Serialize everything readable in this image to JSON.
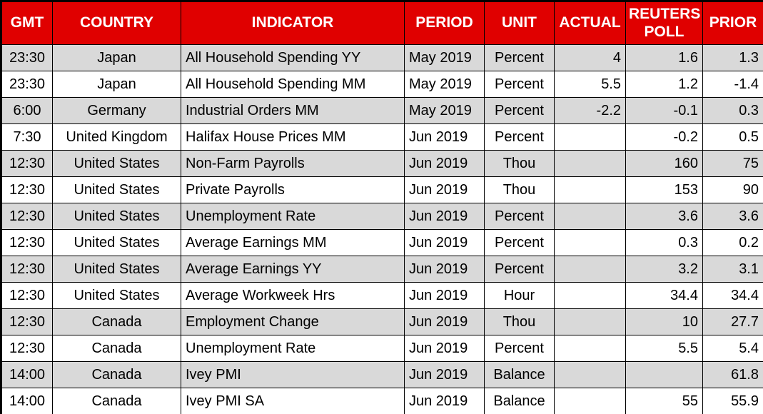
{
  "chart_data": {
    "type": "table",
    "columns": [
      {
        "key": "gmt",
        "label": "GMT",
        "align": "center"
      },
      {
        "key": "country",
        "label": "COUNTRY",
        "align": "center"
      },
      {
        "key": "indicator",
        "label": "INDICATOR",
        "align": "left"
      },
      {
        "key": "period",
        "label": "PERIOD",
        "align": "left"
      },
      {
        "key": "unit",
        "label": "UNIT",
        "align": "center"
      },
      {
        "key": "actual",
        "label": "ACTUAL",
        "align": "right"
      },
      {
        "key": "reuters_poll",
        "label": "REUTERS POLL",
        "align": "right"
      },
      {
        "key": "prior",
        "label": "PRIOR",
        "align": "right"
      }
    ],
    "rows": [
      [
        "23:30",
        "Japan",
        "All Household Spending YY",
        "May 2019",
        "Percent",
        "4",
        "1.6",
        "1.3"
      ],
      [
        "23:30",
        "Japan",
        "All Household Spending MM",
        "May 2019",
        "Percent",
        "5.5",
        "1.2",
        "-1.4"
      ],
      [
        "6:00",
        "Germany",
        "Industrial Orders MM",
        "May 2019",
        "Percent",
        "-2.2",
        "-0.1",
        "0.3"
      ],
      [
        "7:30",
        "United Kingdom",
        "Halifax House Prices MM",
        "Jun 2019",
        "Percent",
        "",
        "-0.2",
        "0.5"
      ],
      [
        "12:30",
        "United States",
        "Non-Farm Payrolls",
        "Jun 2019",
        "Thou",
        "",
        "160",
        "75"
      ],
      [
        "12:30",
        "United States",
        "Private Payrolls",
        "Jun 2019",
        "Thou",
        "",
        "153",
        "90"
      ],
      [
        "12:30",
        "United States",
        "Unemployment Rate",
        "Jun 2019",
        "Percent",
        "",
        "3.6",
        "3.6"
      ],
      [
        "12:30",
        "United States",
        "Average Earnings MM",
        "Jun 2019",
        "Percent",
        "",
        "0.3",
        "0.2"
      ],
      [
        "12:30",
        "United States",
        "Average Earnings YY",
        "Jun 2019",
        "Percent",
        "",
        "3.2",
        "3.1"
      ],
      [
        "12:30",
        "United States",
        "Average Workweek Hrs",
        "Jun 2019",
        "Hour",
        "",
        "34.4",
        "34.4"
      ],
      [
        "12:30",
        "Canada",
        "Employment Change",
        "Jun 2019",
        "Thou",
        "",
        "10",
        "27.7"
      ],
      [
        "12:30",
        "Canada",
        "Unemployment Rate",
        "Jun 2019",
        "Percent",
        "",
        "5.5",
        "5.4"
      ],
      [
        "14:00",
        "Canada",
        "Ivey PMI",
        "Jun 2019",
        "Balance",
        "",
        "",
        "61.8"
      ],
      [
        "14:00",
        "Canada",
        "Ivey PMI SA",
        "Jun 2019",
        "Balance",
        "",
        "55",
        "55.9"
      ]
    ],
    "colors": {
      "header_bg": "#E00000",
      "header_text": "#FFFFFF",
      "row_alt_bg": "#D9D9D9",
      "row_bg": "#FFFFFF",
      "border": "#000000",
      "text": "#000000"
    },
    "layout_hints": {
      "grid": "all-borders",
      "striped": "odd-rows-gray",
      "header_wrap": "REUTERS POLL wraps to two lines"
    }
  }
}
